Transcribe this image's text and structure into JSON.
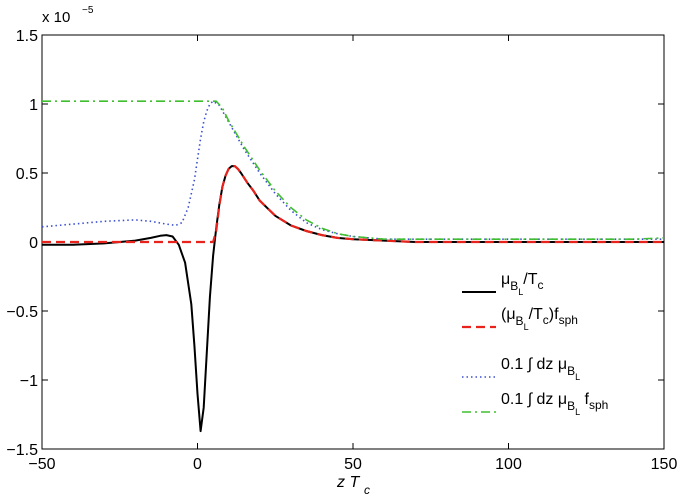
{
  "chart_data": {
    "type": "line",
    "xlabel": "z T",
    "xlabel_sub": "c",
    "ylabel": "",
    "title": "",
    "xlim": [
      -50,
      150
    ],
    "ylim": [
      -1.5,
      1.5
    ],
    "y_multiplier": "x 10",
    "y_multiplier_exp": "−5",
    "xticks": [
      -50,
      0,
      50,
      100,
      150
    ],
    "xtick_labels": [
      "−50",
      "0",
      "50",
      "100",
      "150"
    ],
    "yticks": [
      -1.5,
      -1,
      -0.5,
      0,
      0.5,
      1,
      1.5
    ],
    "ytick_labels": [
      "−1.5",
      "−1",
      "−0.5",
      "0",
      "0.5",
      "1",
      "1.5"
    ],
    "grid": false,
    "legend_position": "lower-right",
    "series": [
      {
        "name": "μB_L/Tc",
        "color": "#000000",
        "style": "solid",
        "x": [
          -50,
          -40,
          -30,
          -25,
          -20,
          -15,
          -12,
          -10,
          -8,
          -6,
          -4,
          -2,
          -1,
          0,
          1,
          2,
          3,
          4,
          5,
          6,
          7,
          8,
          9,
          10,
          11,
          12,
          13,
          14,
          16,
          18,
          20,
          25,
          30,
          35,
          40,
          45,
          50,
          60,
          70,
          80,
          90,
          100,
          110,
          120,
          130,
          140,
          150
        ],
        "y": [
          -0.02,
          -0.02,
          -0.01,
          0.0,
          0.01,
          0.03,
          0.045,
          0.05,
          0.04,
          -0.02,
          -0.15,
          -0.45,
          -0.75,
          -1.1,
          -1.37,
          -1.2,
          -0.8,
          -0.4,
          -0.1,
          0.1,
          0.27,
          0.4,
          0.48,
          0.53,
          0.55,
          0.55,
          0.53,
          0.5,
          0.43,
          0.37,
          0.3,
          0.19,
          0.12,
          0.08,
          0.05,
          0.03,
          0.02,
          0.01,
          0.0,
          0.0,
          0.0,
          0.0,
          0.0,
          0.0,
          0.0,
          0.0,
          0.0
        ]
      },
      {
        "name": "(μB_L/Tc)f_sph",
        "color": "#e8231b",
        "style": "dashed",
        "x": [
          -50,
          -40,
          -30,
          -20,
          -10,
          0,
          5,
          6,
          7,
          8,
          9,
          10,
          11,
          12,
          13,
          14,
          16,
          18,
          20,
          25,
          30,
          35,
          40,
          45,
          50,
          60,
          70,
          80,
          90,
          100,
          110,
          120,
          130,
          140,
          150
        ],
        "y": [
          0.0,
          0.0,
          0.0,
          0.0,
          0.0,
          0.0,
          0.0,
          0.08,
          0.26,
          0.4,
          0.48,
          0.53,
          0.55,
          0.55,
          0.53,
          0.5,
          0.43,
          0.37,
          0.3,
          0.19,
          0.12,
          0.08,
          0.05,
          0.03,
          0.02,
          0.01,
          0.0,
          0.0,
          0.0,
          0.0,
          0.0,
          0.0,
          0.0,
          0.0,
          0.0
        ]
      },
      {
        "name": "0.1∫ dz μB_L",
        "color": "#3b4fd0",
        "style": "dotted",
        "x": [
          -50,
          -40,
          -30,
          -20,
          -15,
          -10,
          -7,
          -5,
          -3,
          -1,
          0,
          1,
          2,
          3,
          4,
          5,
          7,
          10,
          15,
          20,
          25,
          30,
          35,
          40,
          45,
          50,
          60,
          70,
          80,
          90,
          100,
          110,
          120,
          130,
          140,
          150
        ],
        "y": [
          0.11,
          0.13,
          0.15,
          0.16,
          0.15,
          0.13,
          0.12,
          0.14,
          0.25,
          0.45,
          0.6,
          0.75,
          0.87,
          0.95,
          1.0,
          1.02,
          0.99,
          0.87,
          0.67,
          0.5,
          0.35,
          0.23,
          0.14,
          0.09,
          0.06,
          0.04,
          0.02,
          0.02,
          0.02,
          0.02,
          0.02,
          0.02,
          0.02,
          0.02,
          0.02,
          0.02
        ]
      },
      {
        "name": "0.1∫ dz μB_L f_sph",
        "color": "#3fbf2f",
        "style": "dashdot",
        "x": [
          -50,
          -40,
          -30,
          -20,
          -10,
          0,
          5,
          6,
          8,
          10,
          15,
          20,
          25,
          30,
          35,
          40,
          45,
          50,
          60,
          70,
          80,
          90,
          100,
          110,
          120,
          130,
          140,
          150
        ],
        "y": [
          1.02,
          1.02,
          1.02,
          1.02,
          1.02,
          1.02,
          1.02,
          1.02,
          0.97,
          0.88,
          0.69,
          0.52,
          0.37,
          0.25,
          0.16,
          0.1,
          0.06,
          0.04,
          0.02,
          0.02,
          0.02,
          0.02,
          0.02,
          0.02,
          0.02,
          0.02,
          0.02,
          0.03
        ]
      }
    ],
    "legend_labels": [
      {
        "main": "μ",
        "sub1": "B",
        "sub2": "L",
        "tail": "/T",
        "tail_sub": "c",
        "post": "",
        "post_sub": ""
      },
      {
        "main": "(μ",
        "sub1": "B",
        "sub2": "L",
        "tail": "/T",
        "tail_sub": "c",
        "post": ")f",
        "post_sub": "sph"
      },
      {
        "main": "0.1 ∫  dz μ",
        "sub1": "B",
        "sub2": "L",
        "tail": "",
        "tail_sub": "",
        "post": "",
        "post_sub": ""
      },
      {
        "main": "0.1 ∫  dz μ",
        "sub1": "B",
        "sub2": "L",
        "tail": "",
        "tail_sub": "",
        "post": " f",
        "post_sub": "sph"
      }
    ]
  }
}
